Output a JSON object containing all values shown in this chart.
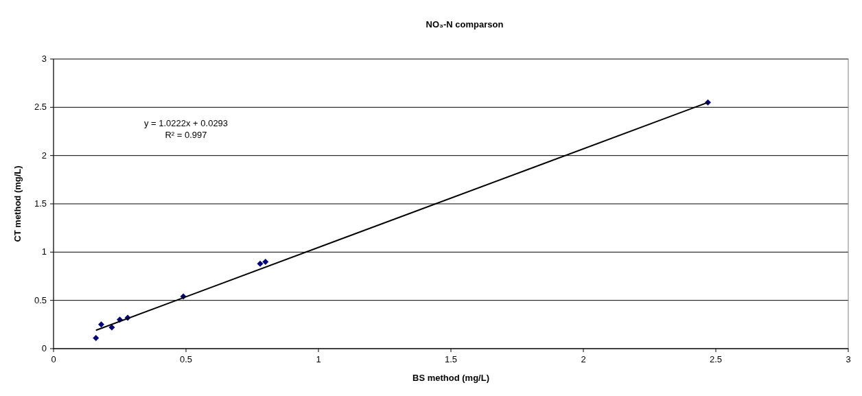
{
  "chart_data": {
    "type": "scatter",
    "title": "NO₃-N comparson",
    "xlabel": "BS method (mg/L)",
    "ylabel": "CT method (mg/L)",
    "series": [
      {
        "marker": "diamond",
        "color": "#000080",
        "x": [
          0.16,
          0.18,
          0.22,
          0.25,
          0.28,
          0.49,
          0.78,
          0.8,
          2.47
        ],
        "values": [
          0.11,
          0.25,
          0.22,
          0.3,
          0.32,
          0.54,
          0.88,
          0.9,
          2.55
        ]
      },
      {
        "type": "line",
        "color": "#000000",
        "x": [
          0.16,
          2.47
        ],
        "values": [
          0.19,
          2.55
        ]
      }
    ],
    "annotations": [
      "y = 1.0222x + 0.0293",
      "R² = 0.997"
    ],
    "xlim": [
      0,
      3
    ],
    "xticks": [
      0,
      0.5,
      1,
      1.5,
      2,
      2.5,
      3
    ],
    "ylim": [
      0,
      3
    ],
    "yticks": [
      0,
      0.5,
      1,
      1.5,
      2,
      2.5,
      3
    ],
    "grid": "y"
  }
}
